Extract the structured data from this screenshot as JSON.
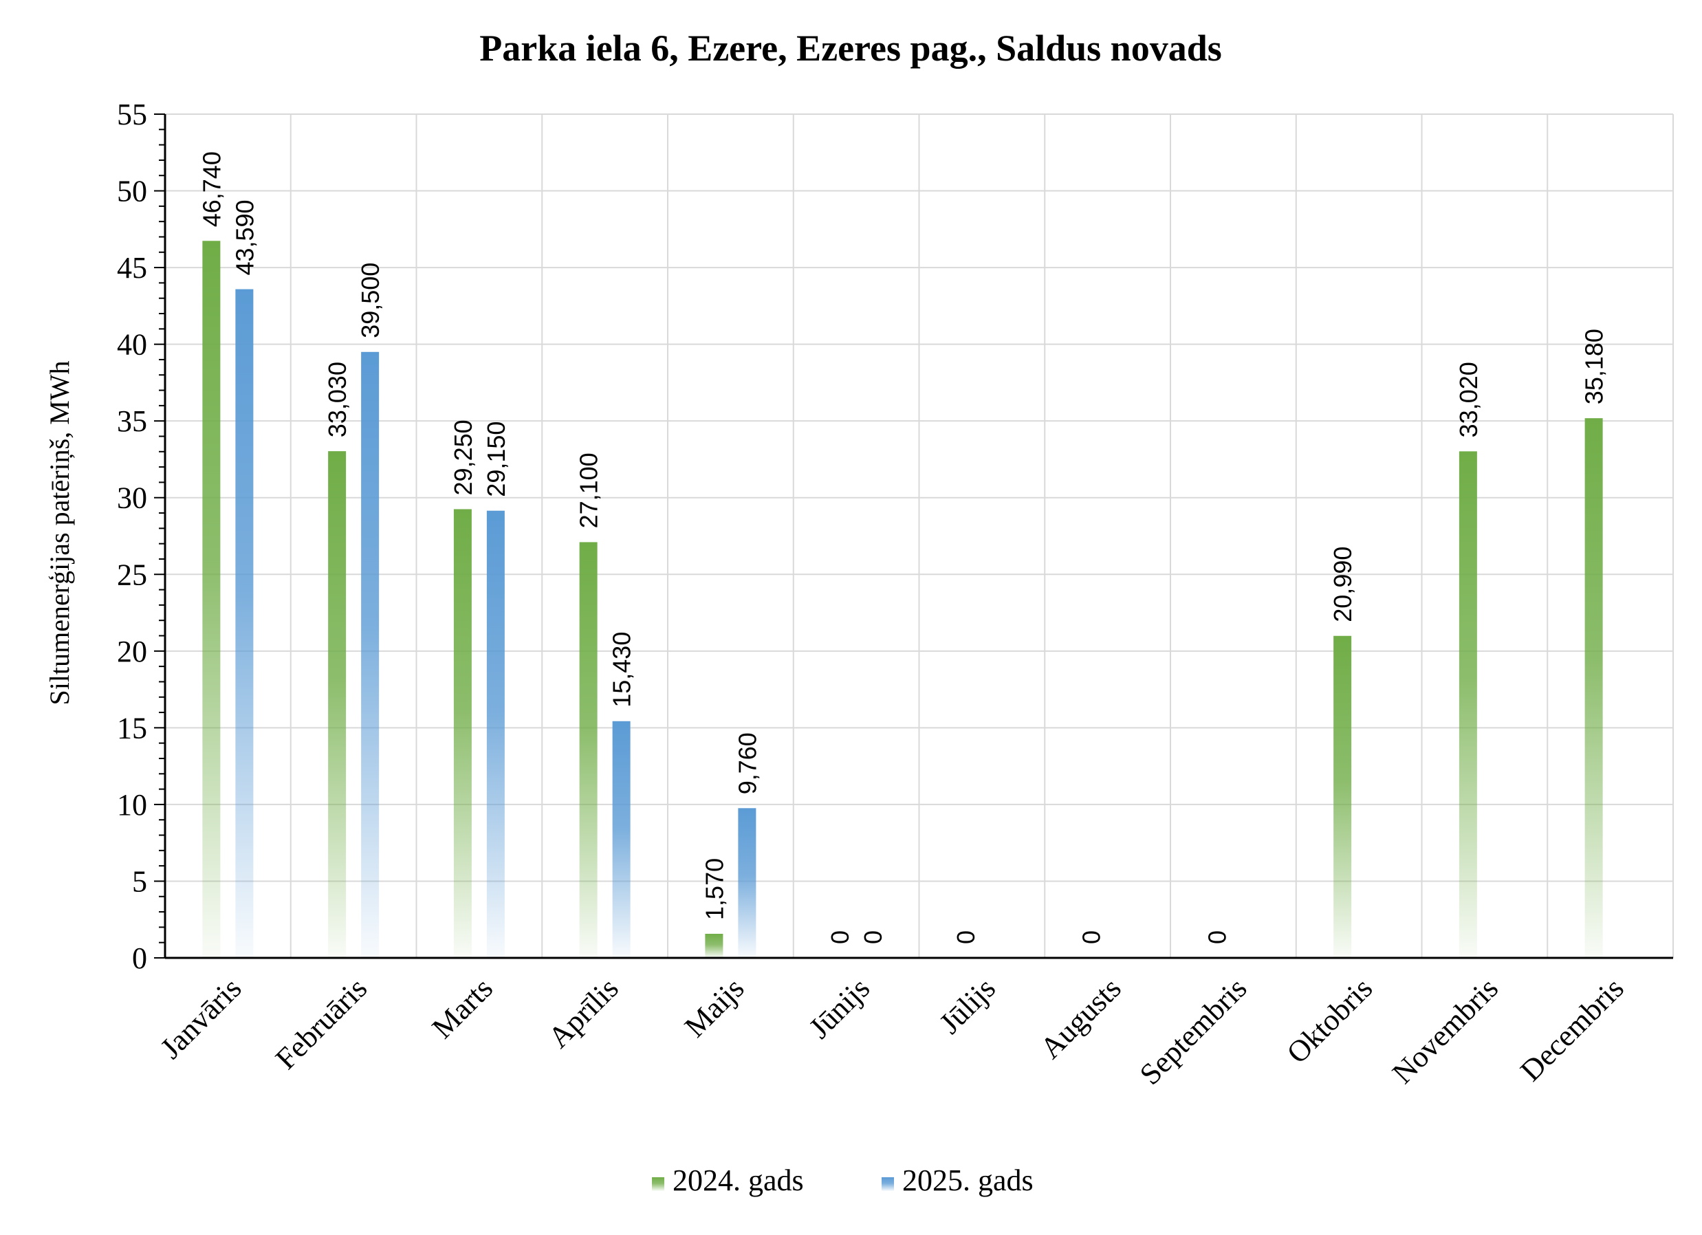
{
  "chart_data": {
    "type": "bar",
    "title": "Parka iela 6, Ezere, Ezeres pag., Saldus novads",
    "xlabel": "",
    "ylabel": "Siltumenerģijas patēriņš, MWh",
    "ylim": [
      0,
      55
    ],
    "ytick_step": 5,
    "yticks": [
      "0",
      "5",
      "10",
      "15",
      "20",
      "25",
      "30",
      "35",
      "40",
      "45",
      "50",
      "55"
    ],
    "grid": true,
    "legend_position": "bottom",
    "categories": [
      "Janvāris",
      "Februāris",
      "Marts",
      "Aprīlis",
      "Maijs",
      "Jūnijs",
      "Jūlijs",
      "Augusts",
      "Septembris",
      "Oktobris",
      "Novembris",
      "Decembris"
    ],
    "series": [
      {
        "name": "2024. gads",
        "color": "#70ad47",
        "values": [
          46.74,
          33.03,
          29.25,
          27.1,
          1.57,
          0,
          0,
          0,
          0,
          20.99,
          33.02,
          35.18
        ],
        "labels": [
          "46,740",
          "33,030",
          "29,250",
          "27,100",
          "1,570",
          "0",
          "0",
          "0",
          "0",
          "20,990",
          "33,020",
          "35,180"
        ]
      },
      {
        "name": "2025. gads",
        "color": "#5b9bd5",
        "values": [
          43.59,
          39.5,
          29.15,
          15.43,
          9.76,
          0,
          null,
          null,
          null,
          null,
          null,
          null
        ],
        "labels": [
          "43,590",
          "39,500",
          "29,150",
          "15,430",
          "9,760",
          "0",
          "",
          "",
          "",
          "",
          "",
          ""
        ]
      }
    ]
  }
}
